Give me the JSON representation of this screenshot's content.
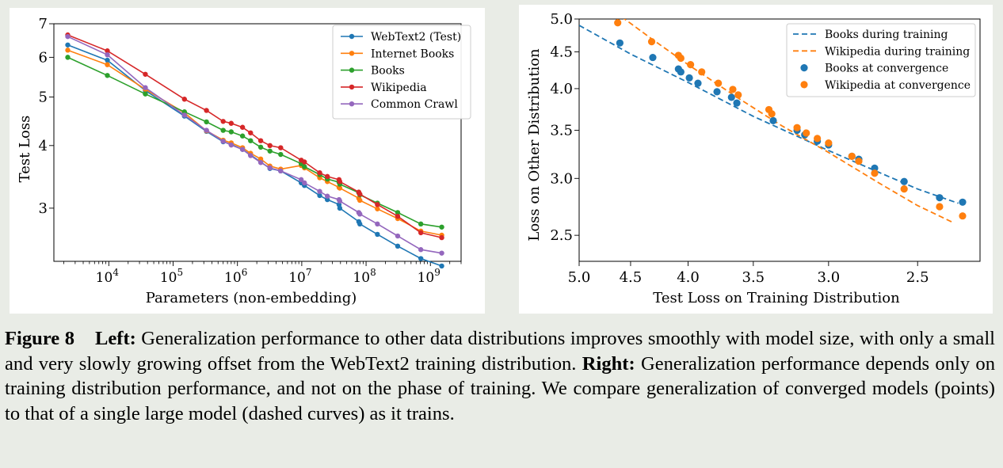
{
  "chart_data": [
    {
      "type": "line",
      "xlabel": "Parameters (non-embedding)",
      "ylabel": "Test Loss",
      "xscale": "log",
      "yscale": "log",
      "xlim": [
        1400,
        3000000000
      ],
      "ylim": [
        2.35,
        7.0
      ],
      "xticks": [
        {
          "v": 10000,
          "e": "4"
        },
        {
          "v": 100000,
          "e": "5"
        },
        {
          "v": 1000000,
          "e": "6"
        },
        {
          "v": 10000000,
          "e": "7"
        },
        {
          "v": 100000000,
          "e": "8"
        },
        {
          "v": 1000000000,
          "e": "9"
        }
      ],
      "tick_base": "10",
      "yticks": [
        3,
        4,
        5,
        6,
        7
      ],
      "legend": "top-right",
      "grid": false,
      "x": [
        2300,
        9500,
        37000,
        150000,
        330000,
        600000,
        800000,
        1200000,
        1600000,
        2300000,
        3200000,
        4700000,
        9800000,
        11000000,
        19000000,
        25000000,
        38000000,
        39000000,
        77000000,
        80000000,
        150000000,
        310000000,
        710000000,
        1500000000
      ],
      "series": [
        {
          "name": "WebText2 (Test)",
          "color": "#1f77b4",
          "values": [
            6.35,
            5.92,
            5.15,
            4.58,
            4.27,
            4.07,
            4.02,
            3.93,
            3.83,
            3.71,
            3.6,
            3.56,
            3.37,
            3.33,
            3.18,
            3.12,
            3.05,
            3.0,
            2.82,
            2.79,
            2.66,
            2.52,
            2.38,
            2.3
          ]
        },
        {
          "name": "Internet Books",
          "color": "#ff7f0e",
          "values": [
            6.2,
            5.8,
            5.18,
            4.65,
            4.28,
            4.1,
            4.05,
            3.96,
            3.86,
            3.76,
            3.64,
            3.59,
            3.65,
            3.61,
            3.45,
            3.39,
            3.3,
            3.29,
            3.14,
            3.11,
            2.99,
            2.86,
            2.7,
            2.65
          ]
        },
        {
          "name": "Books",
          "color": "#2ca02c",
          "values": [
            6.0,
            5.52,
            5.07,
            4.67,
            4.46,
            4.29,
            4.26,
            4.18,
            4.09,
            3.97,
            3.9,
            3.84,
            3.68,
            3.63,
            3.5,
            3.43,
            3.38,
            3.35,
            3.22,
            3.19,
            3.07,
            2.94,
            2.79,
            2.75
          ]
        },
        {
          "name": "Wikipedia",
          "color": "#d62728",
          "values": [
            6.65,
            6.18,
            5.55,
            4.95,
            4.7,
            4.47,
            4.43,
            4.35,
            4.24,
            4.09,
            4.0,
            3.96,
            3.74,
            3.71,
            3.53,
            3.47,
            3.42,
            3.39,
            3.23,
            3.2,
            3.05,
            2.89,
            2.68,
            2.62
          ]
        },
        {
          "name": "Common Crawl",
          "color": "#9467bd",
          "values": [
            6.6,
            6.07,
            5.22,
            4.6,
            4.29,
            4.08,
            4.01,
            3.93,
            3.82,
            3.7,
            3.61,
            3.56,
            3.42,
            3.37,
            3.24,
            3.17,
            3.12,
            3.1,
            2.94,
            2.92,
            2.79,
            2.64,
            2.48,
            2.44
          ]
        }
      ]
    },
    {
      "type": "scatter",
      "xlabel": "Test Loss on Training Distribution",
      "ylabel": "Loss on Other Distribution",
      "xscale": "log",
      "yscale": "log",
      "x_inverted": true,
      "xlim": [
        5.0,
        2.2
      ],
      "ylim": [
        2.3,
        5.0
      ],
      "xticks": [
        5.0,
        4.5,
        4.0,
        3.5,
        3.0,
        2.5
      ],
      "yticks": [
        2.5,
        3.0,
        3.5,
        4.0,
        4.5,
        5.0
      ],
      "legend": "top-right",
      "grid": false,
      "series": [
        {
          "name": "Books during training",
          "style": "dashed",
          "color": "#1f77b4",
          "points": [
            [
              5.0,
              4.9
            ],
            [
              4.5,
              4.47
            ],
            [
              4.0,
              4.08
            ],
            [
              3.5,
              3.66
            ],
            [
              3.0,
              3.28
            ],
            [
              2.5,
              2.9
            ],
            [
              2.3,
              2.77
            ]
          ]
        },
        {
          "name": "Wikipedia during training",
          "style": "dashed",
          "color": "#ff7f0e",
          "points": [
            [
              4.65,
              5.12
            ],
            [
              4.3,
              4.68
            ],
            [
              4.0,
              4.32
            ],
            [
              3.6,
              3.87
            ],
            [
              3.3,
              3.55
            ],
            [
              3.0,
              3.26
            ],
            [
              2.7,
              2.95
            ],
            [
              2.5,
              2.75
            ],
            [
              2.32,
              2.6
            ]
          ]
        },
        {
          "name": "Books at convergence",
          "style": "points",
          "color": "#1f77b4",
          "points": [
            [
              4.6,
              4.63
            ],
            [
              4.3,
              4.42
            ],
            [
              4.08,
              4.26
            ],
            [
              4.06,
              4.22
            ],
            [
              3.99,
              4.14
            ],
            [
              3.92,
              4.07
            ],
            [
              3.77,
              3.96
            ],
            [
              3.66,
              3.89
            ],
            [
              3.62,
              3.82
            ],
            [
              3.36,
              3.61
            ],
            [
              3.2,
              3.5
            ],
            [
              3.15,
              3.45
            ],
            [
              3.07,
              3.38
            ],
            [
              3.0,
              3.34
            ],
            [
              2.86,
              3.22
            ],
            [
              2.82,
              3.19
            ],
            [
              2.73,
              3.1
            ],
            [
              2.57,
              2.97
            ],
            [
              2.39,
              2.82
            ],
            [
              2.28,
              2.78
            ]
          ]
        },
        {
          "name": "Wikipedia at convergence",
          "style": "points",
          "color": "#ff7f0e",
          "points": [
            [
              4.62,
              4.94
            ],
            [
              4.31,
              4.65
            ],
            [
              4.08,
              4.45
            ],
            [
              4.06,
              4.41
            ],
            [
              3.98,
              4.32
            ],
            [
              3.89,
              4.22
            ],
            [
              3.76,
              4.07
            ],
            [
              3.65,
              3.99
            ],
            [
              3.61,
              3.92
            ],
            [
              3.39,
              3.74
            ],
            [
              3.37,
              3.69
            ],
            [
              3.2,
              3.53
            ],
            [
              3.14,
              3.47
            ],
            [
              3.07,
              3.41
            ],
            [
              3.0,
              3.36
            ],
            [
              2.86,
              3.22
            ],
            [
              2.82,
              3.17
            ],
            [
              2.73,
              3.05
            ],
            [
              2.57,
              2.9
            ],
            [
              2.39,
              2.74
            ],
            [
              2.28,
              2.66
            ]
          ]
        }
      ]
    }
  ],
  "caption": {
    "fig_label": "Figure 8",
    "left_label": "Left:",
    "left_text": " Generalization performance to other data distributions improves smoothly with model size, with only a small and very slowly growing offset from the WebText2 training distribution. ",
    "right_label": "Right:",
    "right_text": " Generalization performance depends only on training distribution performance, and not on the phase of training. We compare generalization of converged models (points) to that of a single large model (dashed curves) as it trains."
  }
}
